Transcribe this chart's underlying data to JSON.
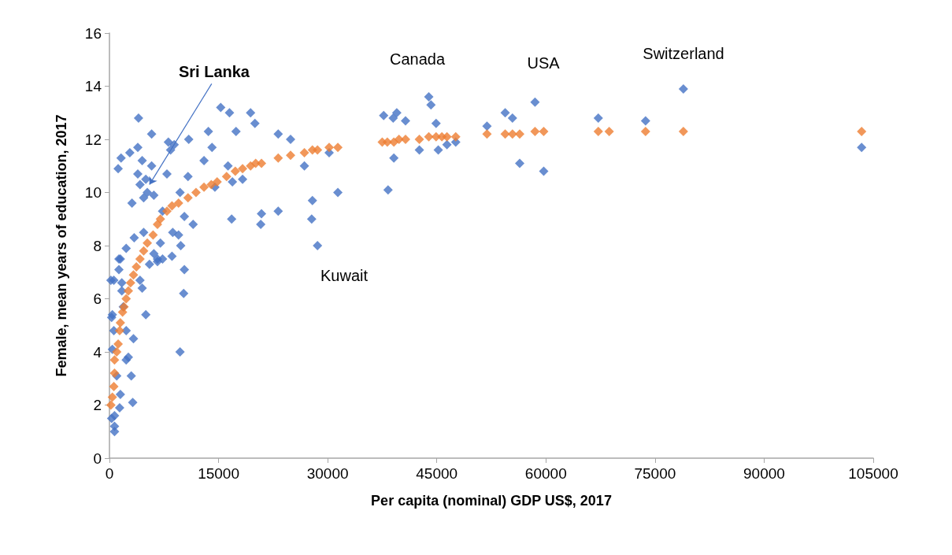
{
  "chart_data": {
    "type": "scatter",
    "xlabel": "Per capita (nominal) GDP US$, 2017",
    "ylabel": "Female, mean years of education, 2017",
    "xlim": [
      0,
      105000
    ],
    "xticks": [
      0,
      15000,
      30000,
      45000,
      60000,
      75000,
      90000,
      105000
    ],
    "ylim": [
      0,
      16
    ],
    "yticks": [
      0,
      2,
      4,
      6,
      8,
      10,
      12,
      14,
      16
    ],
    "grid": false,
    "marker": "diamond",
    "annotations": [
      {
        "text": "Sri Lanka",
        "x": 5500,
        "y": 10.3
      },
      "Canada",
      "USA",
      "Switzerland",
      "Kuwait"
    ],
    "series": [
      {
        "color": "#4472c4",
        "x": [
          37700,
          39000,
          39500,
          40700,
          43900,
          44200,
          44900,
          42600,
          45200,
          46400,
          47600,
          39100,
          38300,
          51900,
          54400,
          55400,
          58500,
          56400,
          59700,
          67200,
          73700,
          78900,
          103400,
          19400,
          20000,
          23200,
          24900,
          26800,
          18300,
          30200,
          20900,
          20800,
          23200,
          27900,
          27800,
          28600,
          31400,
          4000,
          5800,
          15300,
          16500,
          8100,
          8900,
          8400,
          10900,
          13600,
          17400,
          14100,
          13000,
          16300,
          3900,
          2800,
          1600,
          1200,
          4500,
          5800,
          3900,
          5000,
          7900,
          10800,
          4200,
          5200,
          6100,
          4700,
          3100,
          9700,
          16900,
          14500,
          10300,
          11500,
          16800,
          7300,
          4700,
          3400,
          2300,
          1500,
          7000,
          8700,
          9500,
          9800,
          6100,
          8600,
          6600,
          7300,
          1300,
          5500,
          6600,
          10300,
          1300,
          600,
          1700,
          4200,
          4500,
          10200,
          1700,
          5000,
          400,
          1900,
          600,
          2300,
          3300,
          9700,
          400,
          2600,
          2300,
          3000,
          1000,
          1500,
          3200,
          1400,
          700,
          700,
          700,
          300,
          300,
          200
        ],
        "values": [
          12.9,
          12.8,
          13.0,
          12.7,
          13.6,
          13.3,
          12.6,
          11.6,
          11.6,
          11.8,
          11.9,
          11.3,
          10.1,
          12.5,
          13.0,
          12.8,
          13.4,
          11.1,
          10.8,
          12.8,
          12.7,
          13.9,
          11.7,
          13.0,
          12.6,
          12.2,
          12.0,
          11.0,
          10.5,
          11.5,
          9.2,
          8.8,
          9.3,
          9.7,
          9.0,
          8.0,
          10.0,
          12.8,
          12.2,
          13.2,
          13.0,
          11.9,
          11.8,
          11.6,
          12.0,
          12.3,
          12.3,
          11.7,
          11.2,
          11.0,
          11.7,
          11.5,
          11.3,
          10.9,
          11.2,
          11.0,
          10.7,
          10.5,
          10.7,
          10.6,
          10.3,
          10.0,
          9.9,
          9.8,
          9.6,
          10.0,
          10.4,
          10.2,
          9.1,
          8.8,
          9.0,
          9.3,
          8.5,
          8.3,
          7.9,
          7.5,
          8.1,
          8.5,
          8.4,
          8.0,
          7.7,
          7.6,
          7.5,
          7.5,
          7.5,
          7.3,
          7.4,
          7.1,
          7.1,
          6.7,
          6.6,
          6.7,
          6.4,
          6.2,
          6.3,
          5.4,
          5.4,
          5.7,
          4.8,
          4.8,
          4.5,
          4.0,
          4.1,
          3.8,
          3.7,
          3.1,
          3.1,
          2.4,
          2.1,
          1.9,
          1.6,
          1.2,
          1.0,
          1.5,
          5.3,
          6.7
        ]
      },
      {
        "color": "#ed7d31",
        "x": [
          200,
          400,
          600,
          700,
          700,
          1000,
          1200,
          1400,
          1500,
          1800,
          2000,
          2300,
          2600,
          2900,
          3300,
          3700,
          4200,
          4700,
          5200,
          6000,
          6600,
          7000,
          7900,
          8600,
          9500,
          10800,
          11900,
          13000,
          14000,
          14800,
          16100,
          17300,
          18300,
          19400,
          20100,
          20900,
          23200,
          24900,
          26800,
          27900,
          28600,
          30200,
          31400,
          37500,
          38200,
          39100,
          39800,
          40700,
          42600,
          43900,
          44900,
          45700,
          46400,
          47600,
          51900,
          54400,
          55400,
          56400,
          58500,
          59700,
          67200,
          68700,
          73700,
          78900,
          103400
        ],
        "values": [
          2.0,
          2.3,
          2.7,
          3.2,
          3.7,
          4.0,
          4.3,
          4.8,
          5.1,
          5.5,
          5.7,
          6.0,
          6.3,
          6.6,
          6.9,
          7.2,
          7.5,
          7.8,
          8.1,
          8.4,
          8.8,
          9.0,
          9.3,
          9.5,
          9.6,
          9.8,
          10.0,
          10.2,
          10.3,
          10.4,
          10.6,
          10.8,
          10.9,
          11.0,
          11.1,
          11.1,
          11.3,
          11.4,
          11.5,
          11.6,
          11.6,
          11.7,
          11.7,
          11.9,
          11.9,
          11.9,
          12.0,
          12.0,
          12.0,
          12.1,
          12.1,
          12.1,
          12.1,
          12.1,
          12.2,
          12.2,
          12.2,
          12.2,
          12.3,
          12.3,
          12.3,
          12.3,
          12.3,
          12.3,
          12.3
        ]
      }
    ]
  }
}
